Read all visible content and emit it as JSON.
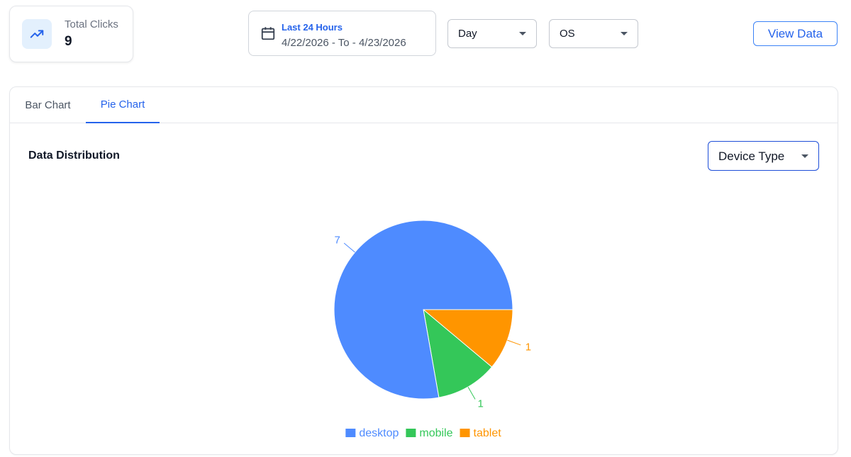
{
  "stat": {
    "label": "Total Clicks",
    "value": "9",
    "icon": "trending-up-icon",
    "icon_color": "#2563eb",
    "icon_bg": "#e3f0fd"
  },
  "date_range": {
    "title": "Last 24 Hours",
    "range": "4/22/2026 - To - 4/23/2026",
    "icon": "calendar-icon"
  },
  "filters": {
    "interval": "Day",
    "group": "OS"
  },
  "actions": {
    "view_data": "View Data"
  },
  "tabs": [
    {
      "label": "Bar Chart",
      "active": false
    },
    {
      "label": "Pie Chart",
      "active": true
    }
  ],
  "section": {
    "title": "Data Distribution",
    "dimension": "Device Type"
  },
  "colors": {
    "accent": "#2563eb",
    "desktop": "#4e8bff",
    "mobile": "#34c759",
    "tablet": "#ff9500"
  },
  "chart_data": {
    "type": "pie",
    "categories": [
      "desktop",
      "mobile",
      "tablet"
    ],
    "values": [
      7,
      1,
      1
    ],
    "colors": [
      "#4e8bff",
      "#34c759",
      "#ff9500"
    ],
    "data_labels": [
      "7",
      "1",
      "1"
    ],
    "legend": {
      "entries": [
        "desktop",
        "mobile",
        "tablet"
      ],
      "position": "bottom"
    }
  }
}
